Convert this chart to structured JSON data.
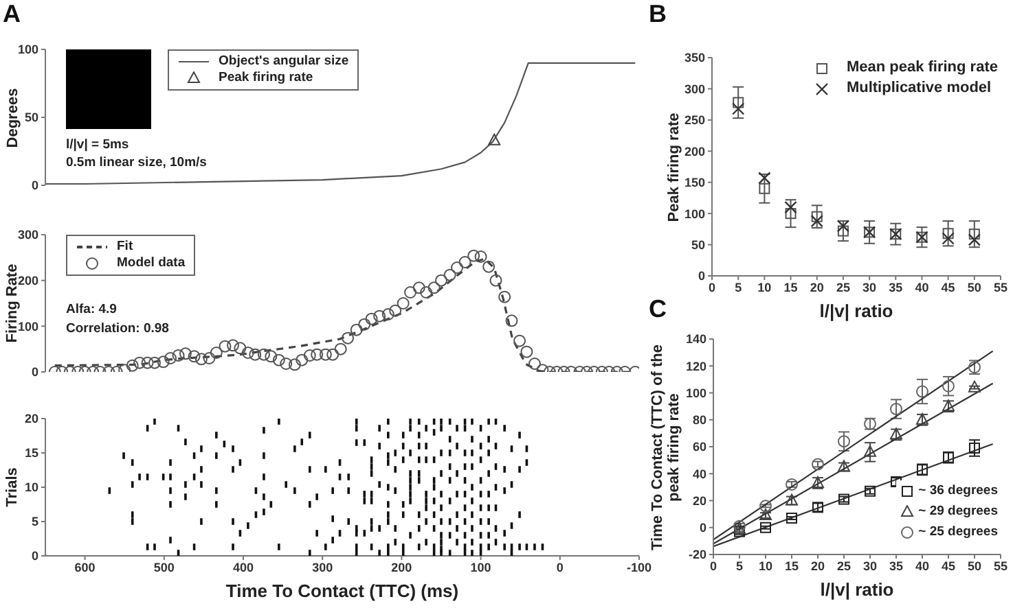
{
  "chart_data": [
    {
      "type": "line",
      "title": "A",
      "ylabel": "Degrees",
      "xlim": [
        650,
        -100
      ],
      "xticks": [
        600,
        500,
        400,
        300,
        200,
        100,
        0,
        -100
      ],
      "ylim": [
        0,
        100
      ],
      "yticks": [
        0,
        50,
        100
      ],
      "tick_labels": "y",
      "legend": "top",
      "annotations": [
        "l/|v| = 5ms",
        "0.5m linear size, 10m/s"
      ],
      "series": [
        {
          "name": "Object's angular size",
          "color": "#555555",
          "x": [
            650,
            600,
            400,
            300,
            200,
            150,
            120,
            100,
            85,
            70,
            55,
            40,
            -95
          ],
          "values": [
            1,
            1,
            3,
            4,
            7,
            12,
            17,
            24,
            32,
            46,
            66,
            90,
            90
          ]
        },
        {
          "type": "scatter",
          "name": "Peak firing rate",
          "color": "#444444",
          "marker": "triangle",
          "x": [
            83
          ],
          "values": [
            33
          ]
        }
      ]
    },
    {
      "type": "scatter",
      "ylabel": "Firing Rate",
      "xlim": [
        650,
        -100
      ],
      "xticks": [
        600,
        500,
        400,
        300,
        200,
        100,
        0,
        -100
      ],
      "ylim": [
        0,
        300
      ],
      "yticks": [
        0,
        100,
        200,
        300
      ],
      "tick_labels": "y",
      "legend": "top left",
      "annotations": [
        "Alfa: 4.9",
        "Correlation: 0.98"
      ],
      "series": [
        {
          "type": "line",
          "name": "Fit",
          "color": "#444444",
          "line_style": "dashed",
          "x": [
            638,
            587,
            530,
            501,
            473,
            433,
            404,
            381,
            330,
            278,
            244,
            198,
            158,
            129,
            106,
            95,
            83,
            72,
            60,
            43,
            26,
            14,
            -95
          ],
          "values": [
            14,
            15,
            16,
            26,
            30,
            34,
            38,
            44,
            56,
            72,
            96,
            130,
            172,
            212,
            242,
            247,
            227,
            162,
            72,
            17,
            2,
            0,
            0
          ]
        },
        {
          "name": "Model data",
          "color": "#555555",
          "marker": "circle",
          "x": [
            638,
            629,
            619,
            609,
            600,
            590,
            581,
            570,
            560,
            550,
            540,
            531,
            521,
            512,
            501,
            492,
            482,
            473,
            462,
            453,
            443,
            434,
            423,
            413,
            404,
            394,
            385,
            374,
            365,
            355,
            346,
            335,
            326,
            316,
            307,
            296,
            287,
            277,
            268,
            257,
            247,
            238,
            228,
            217,
            208,
            198,
            189,
            178,
            169,
            159,
            150,
            139,
            130,
            120,
            109,
            100,
            90,
            81,
            70,
            61,
            51,
            42,
            32,
            22,
            13,
            4,
            -5,
            -14,
            -25,
            -34,
            -43,
            -53,
            -62,
            -72,
            -82,
            -95
          ],
          "values": [
            0,
            0,
            0,
            0,
            0,
            0,
            0,
            0,
            0,
            4,
            14,
            20,
            20,
            20,
            22,
            30,
            36,
            40,
            34,
            28,
            30,
            42,
            56,
            58,
            52,
            42,
            38,
            38,
            34,
            26,
            18,
            16,
            26,
            36,
            38,
            38,
            38,
            50,
            74,
            92,
            104,
            116,
            122,
            126,
            134,
            150,
            174,
            184,
            174,
            184,
            200,
            212,
            228,
            240,
            254,
            252,
            230,
            200,
            164,
            112,
            68,
            44,
            18,
            4,
            0,
            0,
            0,
            0,
            0,
            0,
            0,
            0,
            0,
            0,
            0,
            0
          ]
        }
      ]
    },
    {
      "type": "scatter",
      "xlabel": "Time To Contact (TTC) (ms)",
      "ylabel": "Trials",
      "xlim": [
        650,
        -100
      ],
      "xticks": [
        600,
        500,
        400,
        300,
        200,
        100,
        0,
        -100
      ],
      "ylim": [
        0,
        20
      ],
      "yticks": [
        0,
        5,
        10,
        15,
        20
      ],
      "series": [
        {
          "color": "#111111",
          "x": [
            569,
            551,
            540,
            540,
            540,
            540,
            531,
            521,
            521,
            521,
            512,
            512,
            501,
            492,
            492,
            492,
            492,
            492,
            482,
            482,
            473,
            473,
            473,
            462,
            462,
            462,
            453,
            453,
            453,
            453,
            434,
            434,
            434,
            434,
            424,
            413,
            413,
            413,
            413,
            404,
            404,
            394,
            384,
            384,
            374,
            374,
            374,
            374,
            374,
            365,
            355,
            355,
            346,
            335,
            335,
            326,
            316,
            316,
            316,
            316,
            307,
            307,
            296,
            296,
            287,
            287,
            287,
            278,
            278,
            278,
            267,
            267,
            267,
            257,
            257,
            257,
            257,
            257,
            257,
            257,
            247,
            247,
            247,
            247,
            238,
            238,
            238,
            238,
            238,
            238,
            238,
            238,
            228,
            228,
            228,
            228,
            228,
            217,
            217,
            217,
            217,
            217,
            217,
            217,
            217,
            217,
            217,
            208,
            208,
            208,
            208,
            208,
            198,
            198,
            198,
            198,
            198,
            198,
            198,
            189,
            189,
            189,
            189,
            189,
            189,
            189,
            189,
            189,
            178,
            178,
            178,
            178,
            178,
            178,
            178,
            178,
            178,
            169,
            169,
            169,
            169,
            169,
            169,
            169,
            169,
            159,
            159,
            159,
            159,
            159,
            159,
            159,
            159,
            159,
            159,
            150,
            150,
            150,
            150,
            150,
            150,
            150,
            150,
            150,
            150,
            150,
            139,
            139,
            139,
            139,
            139,
            139,
            139,
            139,
            139,
            130,
            130,
            130,
            130,
            130,
            130,
            130,
            120,
            120,
            120,
            120,
            120,
            120,
            120,
            120,
            120,
            120,
            120,
            111,
            111,
            111,
            111,
            111,
            111,
            111,
            111,
            111,
            111,
            100,
            100,
            100,
            100,
            100,
            100,
            100,
            100,
            100,
            100,
            90,
            90,
            90,
            90,
            90,
            90,
            90,
            90,
            90,
            81,
            81,
            81,
            81,
            81,
            81,
            81,
            70,
            70,
            70,
            70,
            70,
            61,
            61,
            61,
            61,
            61,
            51,
            51,
            51,
            51,
            42,
            42,
            42,
            32,
            22
          ],
          "values": [
            9.5,
            14.6,
            13.6,
            10.4,
            6,
            5,
            11.5,
            11.5,
            18.6,
            1.3,
            19.6,
            1.3,
            11.5,
            13.6,
            11.5,
            9.5,
            7.5,
            2.3,
            18.6,
            0.4,
            16.6,
            10.4,
            8.6,
            14.6,
            11.5,
            1.3,
            15.6,
            12.6,
            10.4,
            5,
            17.6,
            14.6,
            9.5,
            7.5,
            16.3,
            15.6,
            12.6,
            5,
            1.3,
            13.6,
            3.3,
            4.4,
            9.5,
            6,
            18.3,
            14.6,
            11.5,
            8.6,
            6.4,
            7.5,
            19.6,
            1.3,
            10.4,
            15.6,
            9.5,
            16.6,
            17.6,
            12.6,
            7.5,
            0.4,
            8.6,
            3.3,
            12.6,
            1.3,
            9.5,
            2.3,
            5.4,
            13.6,
            11.5,
            3.3,
            11.5,
            5,
            9.5,
            19.6,
            18.6,
            16.5,
            4,
            3.3,
            1.3,
            0.4,
            16.5,
            9,
            8,
            3.3,
            14,
            13,
            12,
            9,
            8,
            5,
            4,
            1.3,
            18.6,
            16,
            10.4,
            4,
            0.4,
            19.6,
            17.6,
            14.6,
            13.6,
            10,
            7.5,
            6,
            5,
            1.3,
            0.4,
            15,
            12.6,
            9.5,
            4,
            2,
            17.6,
            16,
            14,
            7.5,
            6,
            1.3,
            0.4,
            19.6,
            18.6,
            15,
            12,
            11,
            10,
            9,
            8,
            3,
            19.6,
            17.6,
            16,
            14,
            12,
            11,
            6,
            4,
            1.3,
            18.6,
            16,
            14,
            9,
            8,
            7,
            5,
            2,
            19.6,
            18,
            14,
            11,
            10,
            8,
            6,
            4,
            1.3,
            0.4,
            19.6,
            18.6,
            15,
            12,
            9,
            7,
            5,
            3,
            2,
            1,
            0.4,
            19.6,
            17,
            15,
            13,
            11,
            8,
            5,
            3,
            0.4,
            18.6,
            16,
            12,
            9,
            6,
            4,
            2,
            19.6,
            18.6,
            15,
            13,
            11,
            9,
            7,
            5,
            3,
            1.3,
            0.4,
            19.6,
            17,
            15,
            13,
            10,
            8,
            6,
            4,
            2,
            0.4,
            18.6,
            16,
            14,
            11,
            9,
            7,
            5,
            3,
            1.3,
            0.4,
            19.6,
            17,
            15,
            12,
            9,
            7,
            5,
            3,
            1.3,
            19.6,
            16,
            13,
            10,
            7,
            4,
            2,
            18.6,
            12.6,
            9.5,
            3.3,
            1.3,
            15.6,
            10.4,
            4.4,
            1.3,
            0.4,
            17.6,
            12.6,
            6,
            1.3,
            15.6,
            13.6,
            1.3,
            1.3,
            1.3
          ]
        }
      ]
    },
    {
      "type": "scatter",
      "title": "B",
      "xlabel": "l/|v| ratio",
      "ylabel": "Peak firing rate",
      "xlim": [
        0,
        55
      ],
      "xticks": [
        0,
        5,
        10,
        15,
        20,
        25,
        30,
        35,
        40,
        45,
        50,
        55
      ],
      "ylim": [
        0,
        350
      ],
      "yticks": [
        0,
        50,
        100,
        150,
        200,
        250,
        300,
        350
      ],
      "legend": "top right",
      "series": [
        {
          "name": "Mean peak firing rate",
          "color": "#555555",
          "marker": "square",
          "x": [
            5,
            10,
            15,
            20,
            25,
            30,
            35,
            40,
            45,
            50
          ],
          "values": [
            278,
            140,
            100,
            95,
            72,
            70,
            67,
            62,
            68,
            67
          ],
          "errors": [
            25,
            23,
            22,
            18,
            16,
            18,
            17,
            16,
            20,
            21
          ]
        },
        {
          "name": "Multiplicative model",
          "color": "#333333",
          "marker": "cross",
          "x": [
            5,
            10,
            15,
            20,
            25,
            30,
            35,
            40,
            45,
            50
          ],
          "values": [
            268,
            157,
            110,
            88,
            80,
            70,
            67,
            62,
            60,
            58
          ]
        }
      ]
    },
    {
      "type": "scatter",
      "title": "C",
      "xlabel": "l/|v| ratio",
      "ylabel": "Time To Contact (TTC) of the peak firing rate",
      "xlim": [
        0,
        55
      ],
      "xticks": [
        0,
        5,
        10,
        15,
        20,
        25,
        30,
        35,
        40,
        45,
        50,
        55
      ],
      "ylim": [
        -20,
        140
      ],
      "yticks": [
        -20,
        0,
        20,
        40,
        60,
        80,
        100,
        120,
        140
      ],
      "legend": "bottom right",
      "series": [
        {
          "name": "~ 36 degrees",
          "color": "#222222",
          "marker": "square",
          "x": [
            5,
            10,
            15,
            20,
            25,
            30,
            35,
            40,
            45,
            50
          ],
          "values": [
            -3,
            0,
            7,
            15,
            21,
            27,
            34,
            43,
            52,
            59
          ],
          "errors": [
            2,
            1,
            1,
            3,
            2,
            2,
            3,
            4,
            4,
            6
          ]
        },
        {
          "name": "~ 29 degrees",
          "color": "#444444",
          "marker": "triangle",
          "x": [
            5,
            10,
            15,
            20,
            25,
            30,
            35,
            40,
            45,
            50
          ],
          "values": [
            -1,
            9,
            20,
            33,
            45,
            56,
            69,
            80,
            90,
            104
          ],
          "errors": [
            2,
            2,
            3,
            4,
            3,
            7,
            4,
            4,
            4,
            1
          ]
        },
        {
          "name": "~ 25 degrees",
          "color": "#666666",
          "marker": "circle",
          "x": [
            5,
            10,
            15,
            20,
            25,
            30,
            35,
            40,
            45,
            50
          ],
          "values": [
            1,
            16,
            32,
            47,
            64,
            77,
            88,
            101,
            105,
            119
          ],
          "errors": [
            2,
            1,
            2,
            2,
            7,
            4,
            7,
            9,
            7,
            5
          ]
        },
        {
          "type": "line",
          "color": "#333333",
          "x": [
            0,
            53.5
          ],
          "values": [
            -14,
            62
          ]
        },
        {
          "type": "line",
          "color": "#333333",
          "x": [
            0,
            53.5
          ],
          "values": [
            -12,
            107
          ]
        },
        {
          "type": "line",
          "color": "#333333",
          "x": [
            0,
            53.5
          ],
          "values": [
            -9,
            131
          ]
        }
      ]
    }
  ]
}
